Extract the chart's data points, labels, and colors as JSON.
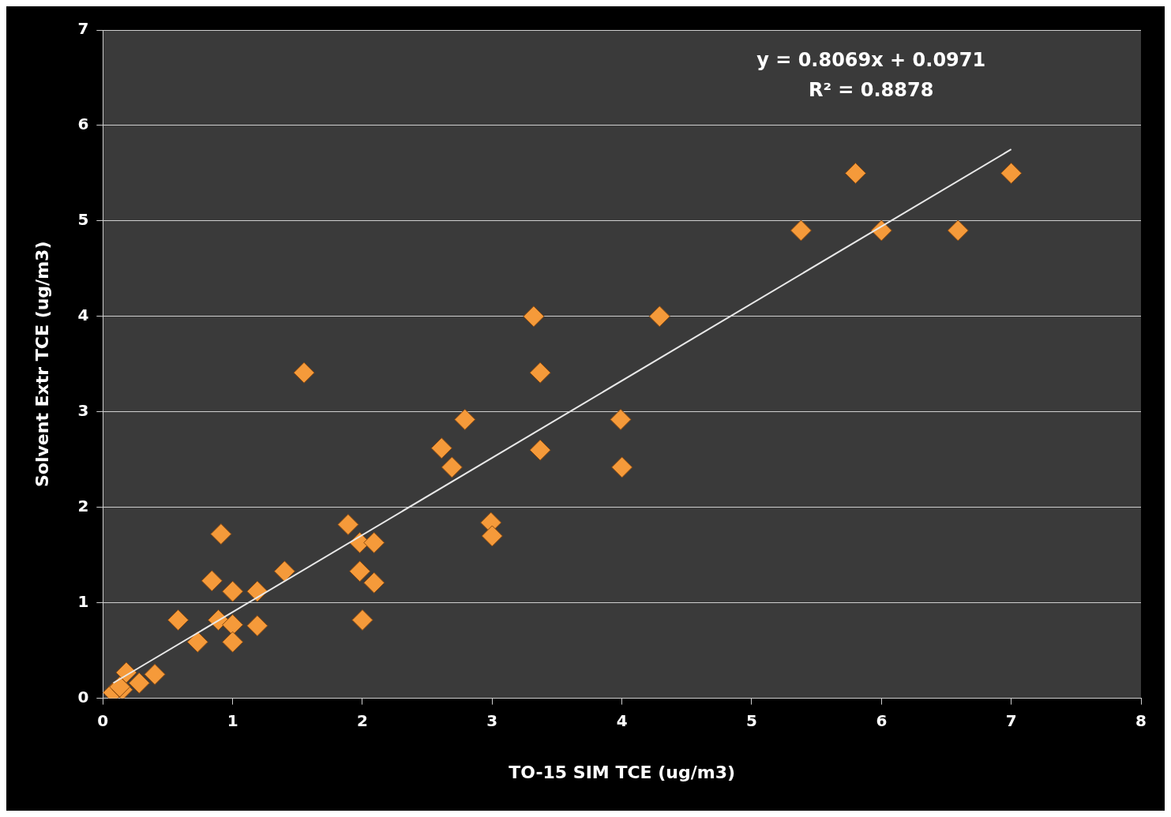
{
  "chart_data": {
    "type": "scatter",
    "xlabel": "TO-15 SIM TCE (ug/m3)",
    "ylabel": "Solvent Extr TCE (ug/m3)",
    "series": [
      {
        "color": "#f59a3a",
        "marker": "diamond",
        "x": [
          5.8,
          7.0,
          5.38,
          6.0,
          6.59,
          3.32,
          4.29,
          1.55,
          3.37,
          2.79,
          3.99,
          2.61,
          3.37,
          2.69,
          4.0,
          1.89,
          2.99,
          3.0,
          0.91,
          1.98,
          2.09,
          1.4,
          1.98,
          2.09,
          0.84,
          1.0,
          1.19,
          0.58,
          2.0,
          0.89,
          1.0,
          1.19,
          0.73,
          1.0,
          0.08,
          0.15,
          0.18,
          0.28,
          0.4,
          0.13
        ],
        "values": [
          5.5,
          5.5,
          4.9,
          4.9,
          4.9,
          4.0,
          4.0,
          3.41,
          3.41,
          2.92,
          2.92,
          2.62,
          2.6,
          2.42,
          2.42,
          1.82,
          1.84,
          1.7,
          1.72,
          1.63,
          1.63,
          1.33,
          1.33,
          1.21,
          1.23,
          1.12,
          1.12,
          0.82,
          0.82,
          0.82,
          0.77,
          0.76,
          0.59,
          0.59,
          0.06,
          0.09,
          0.27,
          0.16,
          0.25,
          0.12
        ]
      },
      {
        "type": "line",
        "color": "#e8e8e8",
        "x": [
          0.08,
          7.0
        ],
        "values": [
          0.16,
          5.75
        ]
      }
    ],
    "xlim": [
      0,
      8
    ],
    "xticks": [
      0,
      1,
      2,
      3,
      4,
      5,
      6,
      7,
      8
    ],
    "ylim": [
      0,
      7
    ],
    "yticks": [
      0,
      1,
      2,
      3,
      4,
      5,
      6,
      7
    ],
    "grid": "y",
    "legend": false,
    "annotations": [
      "y = 0.8069x + 0.0971",
      "R² = 0.8878"
    ]
  }
}
